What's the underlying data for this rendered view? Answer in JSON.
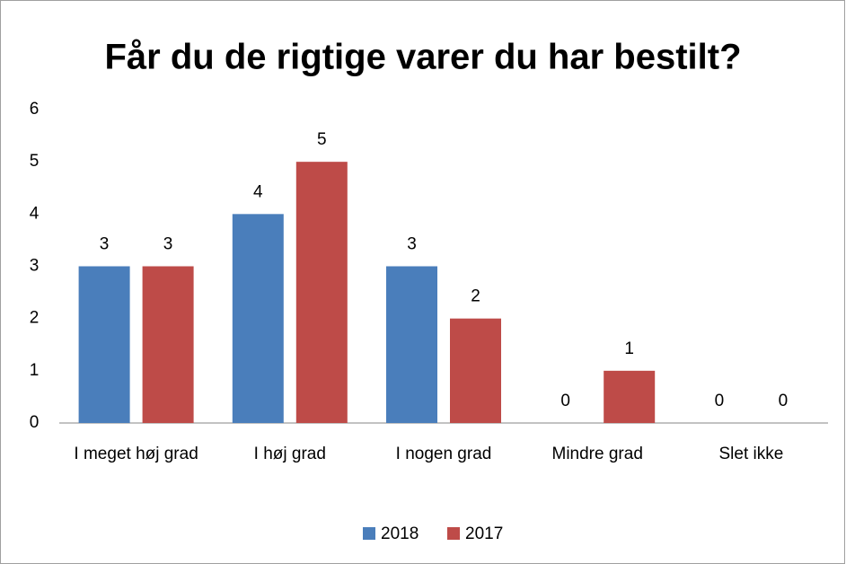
{
  "chart_data": {
    "type": "bar",
    "title": "Får du de rigtige varer du har bestilt?",
    "categories": [
      "I meget høj grad",
      "I høj grad",
      "I nogen grad",
      "Mindre grad",
      "Slet ikke"
    ],
    "series": [
      {
        "name": "2018",
        "color": "#4a7ebb",
        "values": [
          3,
          4,
          3,
          0,
          0
        ]
      },
      {
        "name": "2017",
        "color": "#be4b48",
        "values": [
          3,
          5,
          2,
          1,
          0
        ]
      }
    ],
    "ylim": [
      0,
      6
    ],
    "yticks": [
      0,
      1,
      2,
      3,
      4,
      5,
      6
    ],
    "grid": false,
    "legend": "bottom"
  }
}
